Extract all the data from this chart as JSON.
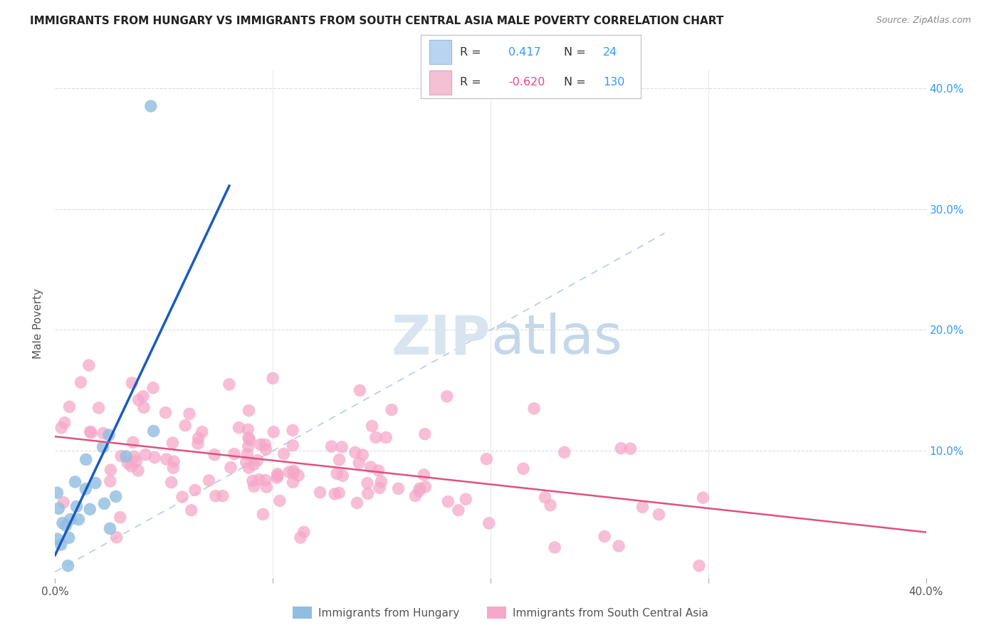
{
  "title": "IMMIGRANTS FROM HUNGARY VS IMMIGRANTS FROM SOUTH CENTRAL ASIA MALE POVERTY CORRELATION CHART",
  "source": "Source: ZipAtlas.com",
  "ylabel": "Male Poverty",
  "ytick_vals": [
    0.0,
    0.1,
    0.2,
    0.3,
    0.4
  ],
  "ytick_labels": [
    "",
    "10.0%",
    "20.0%",
    "30.0%",
    "40.0%"
  ],
  "xlim": [
    0.0,
    0.4
  ],
  "ylim": [
    -0.005,
    0.415
  ],
  "hungary_color": "#90bde0",
  "sca_color": "#f5a8c8",
  "hungary_line_color": "#1a5bbf",
  "sca_line_color": "#e05080",
  "diagonal_color": "#b8cce4",
  "watermark_zip_color": "#d5e0ec",
  "watermark_atlas_color": "#c8d8e8",
  "background_color": "#ffffff",
  "grid_color": "#d8dde8",
  "legend_border_color": "#cccccc",
  "legend_box_blue": "#b8d4f0",
  "legend_box_pink": "#f5c0d4",
  "text_color": "#555555",
  "blue_label_color": "#3399ff",
  "pink_label_color": "#ee4488"
}
